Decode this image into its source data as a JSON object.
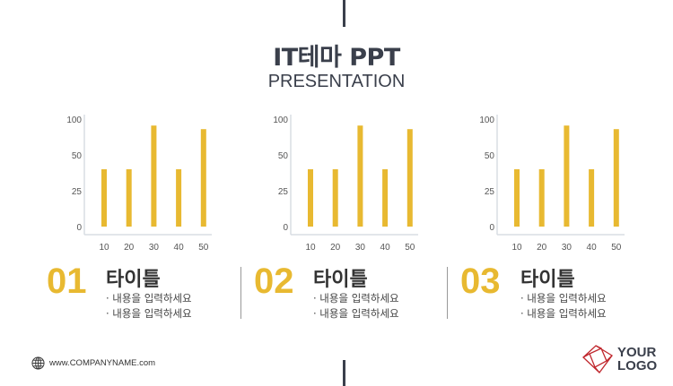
{
  "header": {
    "title": "IT테마 PPT",
    "subtitle": "PRESENTATION"
  },
  "colors": {
    "accent": "#e8b931",
    "dark": "#3a3f4b",
    "logo": "#c0272d"
  },
  "chart_data": [
    {
      "type": "bar",
      "categories": [
        "10",
        "20",
        "30",
        "40",
        "50"
      ],
      "values": [
        40,
        40,
        91,
        40,
        86
      ],
      "yticks": [
        0,
        25,
        50,
        100
      ],
      "ylim": [
        0,
        100
      ],
      "grid": false
    },
    {
      "type": "bar",
      "categories": [
        "10",
        "20",
        "30",
        "40",
        "50"
      ],
      "values": [
        40,
        40,
        91,
        40,
        86
      ],
      "yticks": [
        0,
        25,
        50,
        100
      ],
      "ylim": [
        0,
        100
      ],
      "grid": false
    },
    {
      "type": "bar",
      "categories": [
        "10",
        "20",
        "30",
        "40",
        "50"
      ],
      "values": [
        40,
        40,
        91,
        40,
        86
      ],
      "yticks": [
        0,
        25,
        50,
        100
      ],
      "ylim": [
        0,
        100
      ],
      "grid": false
    }
  ],
  "sections": [
    {
      "number": "01",
      "title": "타이틀",
      "bullets": [
        "· 내용을 입력하세요",
        "· 내용을 입력하세요"
      ]
    },
    {
      "number": "02",
      "title": "타이틀",
      "bullets": [
        "· 내용을 입력하세요",
        "· 내용을 입력하세요"
      ]
    },
    {
      "number": "03",
      "title": "타이틀",
      "bullets": [
        "· 내용을 입력하세요",
        "· 내용을 입력하세요"
      ]
    }
  ],
  "footer": {
    "website": "www.COMPANYNAME.com",
    "globe_icon": "globe-icon",
    "logo_text": [
      "YOUR",
      "LOGO"
    ]
  }
}
